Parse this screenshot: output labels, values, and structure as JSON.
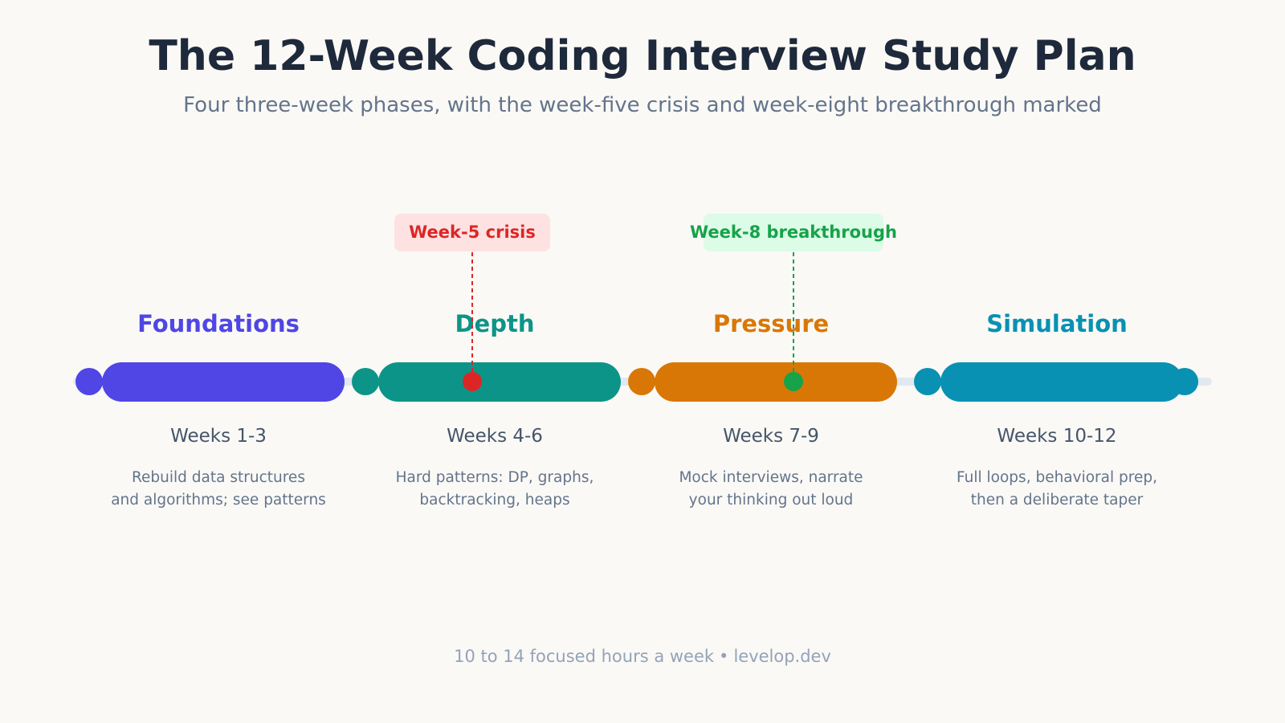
{
  "title": "The 12-Week Coding Interview Study Plan",
  "subtitle": "Four three-week phases, with the week-five crisis and week-eight breakthrough marked",
  "footer": {
    "text": "10 to 14 focused hours a week",
    "separator": "•",
    "site": "levelop.dev"
  },
  "colors": {
    "track": "#e2e8f0",
    "crisis": "#dc2626",
    "crisis_bg": "#fee2e2",
    "breakthrough": "#16a34a",
    "breakthrough_bg": "#dcfce7"
  },
  "phases": [
    {
      "name": "Foundations",
      "weeks": "Weeks 1-3",
      "desc_line1": "Rebuild data structures",
      "desc_line2": "and algorithms; see patterns",
      "color": "#4f46e5",
      "week_start": 1,
      "week_end": 3
    },
    {
      "name": "Depth",
      "weeks": "Weeks 4-6",
      "desc_line1": "Hard patterns: DP, graphs,",
      "desc_line2": "backtracking, heaps",
      "color": "#0d9488",
      "week_start": 4,
      "week_end": 6
    },
    {
      "name": "Pressure",
      "weeks": "Weeks 7-9",
      "desc_line1": "Mock interviews, narrate",
      "desc_line2": "your thinking out loud",
      "color": "#d97706",
      "week_start": 7,
      "week_end": 9
    },
    {
      "name": "Simulation",
      "weeks": "Weeks 10-12",
      "desc_line1": "Full loops, behavioral prep,",
      "desc_line2": "then a deliberate taper",
      "color": "#0891b2",
      "week_start": 10,
      "week_end": 12
    }
  ],
  "markers": [
    {
      "label": "Week-5 crisis",
      "week": 5,
      "phase_index": 1,
      "kind": "crisis"
    },
    {
      "label": "Week-8 breakthrough",
      "week": 8,
      "phase_index": 2,
      "kind": "breakthrough"
    }
  ]
}
